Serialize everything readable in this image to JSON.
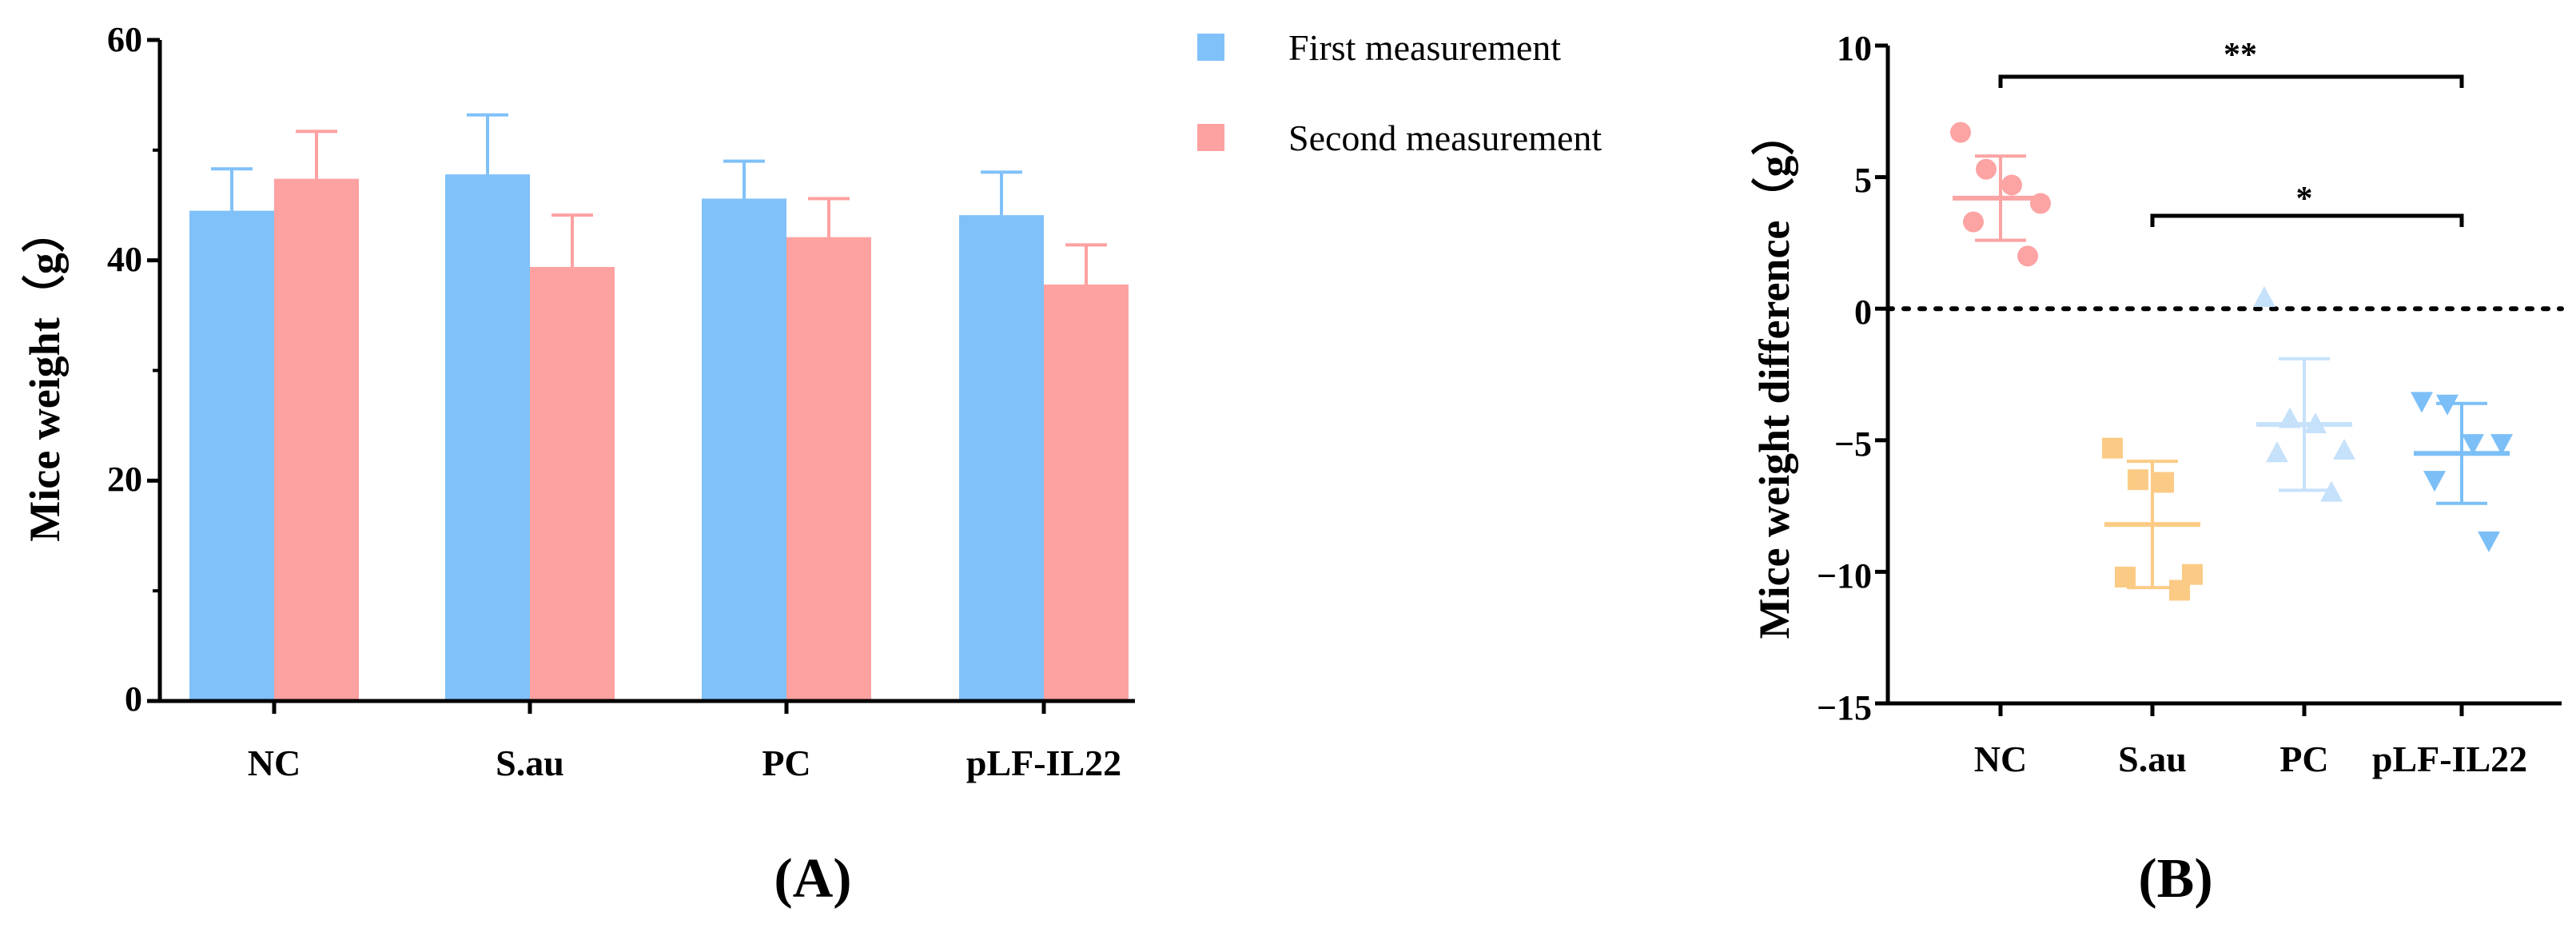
{
  "colors": {
    "first": "#80C1F9",
    "second": "#FEA1A1",
    "nc": "#FCA3A3",
    "sau": "#FBCB86",
    "pc": "#C6E1FA",
    "plf": "#7CBFF6",
    "axis": "#000000"
  },
  "chart_data": [
    {
      "type": "bar",
      "panel_label": "(A)",
      "ylabel": "Mice weight（g）",
      "ylim": [
        0,
        60
      ],
      "yticks": [
        "0",
        "20",
        "40",
        "60"
      ],
      "categories": [
        "NC",
        "S.au",
        "PC",
        "pLF-IL22"
      ],
      "series": [
        {
          "name": "First measurement",
          "values": [
            44.5,
            47.8,
            45.6,
            44.1
          ],
          "errors": [
            3.8,
            5.4,
            3.4,
            3.9
          ]
        },
        {
          "name": "Second measurement",
          "values": [
            47.4,
            39.4,
            42.1,
            37.8
          ],
          "errors": [
            4.3,
            4.7,
            3.5,
            3.6
          ]
        }
      ],
      "legend": [
        "First measurement",
        "Second measurement"
      ],
      "legend_position": "top-right"
    },
    {
      "type": "scatter",
      "panel_label": "(B)",
      "ylabel": "Mice weight difference（g）",
      "ylim": [
        -15,
        10
      ],
      "yticks": [
        "10",
        "5",
        "0",
        "−5",
        "−10",
        "−15"
      ],
      "categories": [
        "NC",
        "S.au",
        "PC",
        "pLF-IL22"
      ],
      "groups": [
        {
          "name": "NC",
          "marker": "circle",
          "points": [
            6.7,
            5.3,
            4.7,
            4.0,
            3.3,
            2.0
          ],
          "mean": 4.2,
          "sd": 1.6
        },
        {
          "name": "S.au",
          "marker": "square",
          "points": [
            -5.3,
            -6.5,
            -6.6,
            -10.1,
            -10.2,
            -10.7
          ],
          "mean": -8.2,
          "sd": 2.4
        },
        {
          "name": "PC",
          "marker": "triangle-up",
          "points": [
            0.4,
            -4.2,
            -4.4,
            -5.4,
            -5.5,
            -7.0
          ],
          "mean": -4.4,
          "sd": 2.5
        },
        {
          "name": "pLF-IL22",
          "marker": "triangle-down",
          "points": [
            -3.5,
            -3.6,
            -5.1,
            -5.1,
            -6.5,
            -8.8
          ],
          "mean": -5.5,
          "sd": 1.9
        }
      ],
      "reference_line": 0,
      "significance": [
        {
          "from": "NC",
          "to": "pLF-IL22",
          "label": "**"
        },
        {
          "from": "S.au",
          "to": "pLF-IL22",
          "label": "*"
        }
      ]
    }
  ]
}
